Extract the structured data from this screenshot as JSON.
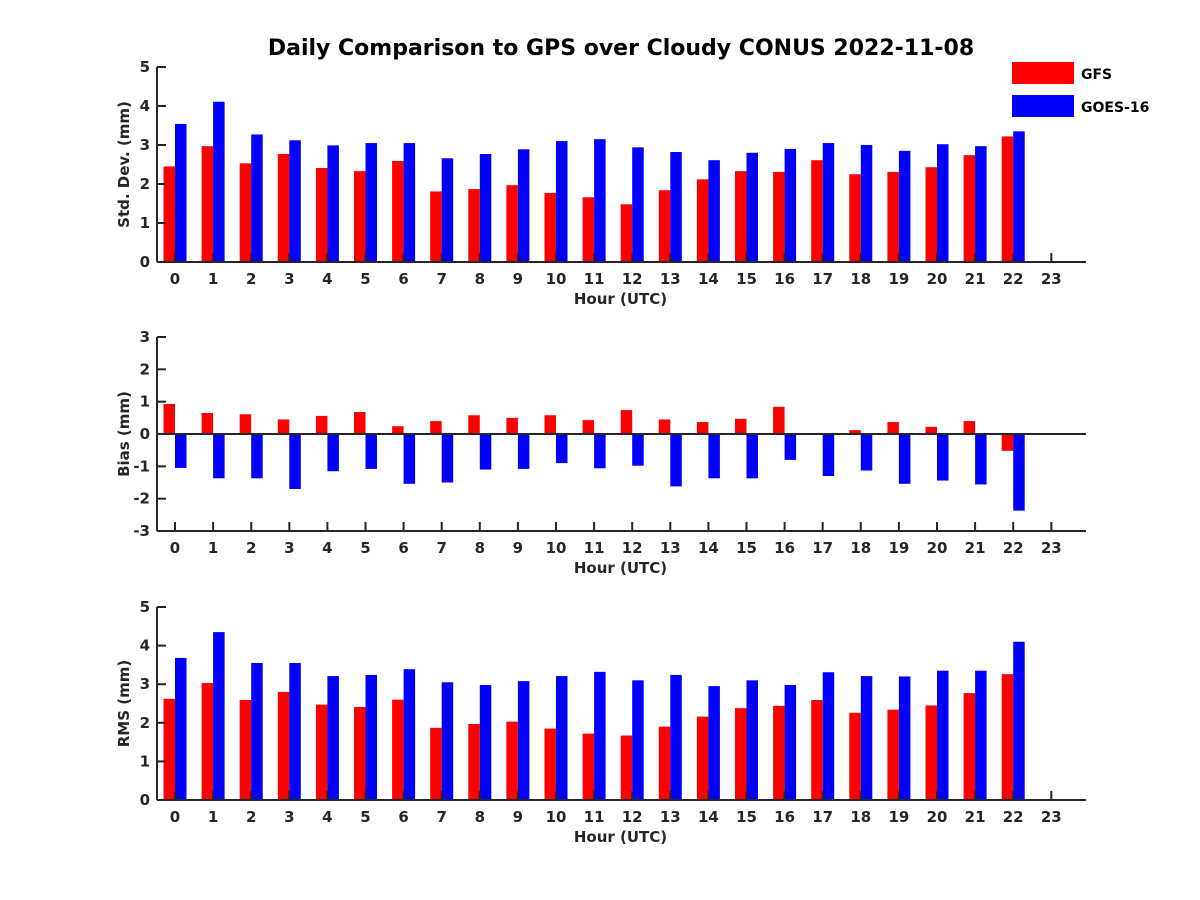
{
  "title": "Daily Comparison to GPS over Cloudy CONUS 2022-11-08",
  "legend": {
    "placement": "top-right",
    "entries": [
      {
        "label": "GFS",
        "color": "#ff0000"
      },
      {
        "label": "GOES-16",
        "color": "#0000ff"
      }
    ]
  },
  "chart_data": [
    {
      "type": "bar",
      "xlabel": "Hour (UTC)",
      "ylabel": "Std. Dev. (mm)",
      "ylim": [
        0,
        5
      ],
      "yticks": [
        0,
        1,
        2,
        3,
        4,
        5
      ],
      "categories": [
        "0",
        "1",
        "2",
        "3",
        "4",
        "5",
        "6",
        "7",
        "8",
        "9",
        "10",
        "11",
        "12",
        "13",
        "14",
        "15",
        "16",
        "17",
        "18",
        "19",
        "20",
        "21",
        "22",
        "23"
      ],
      "series": [
        {
          "name": "GFS",
          "color": "#ff0000",
          "values": [
            2.45,
            2.97,
            2.53,
            2.77,
            2.41,
            2.33,
            2.59,
            1.81,
            1.87,
            1.97,
            1.77,
            1.66,
            1.48,
            1.84,
            2.12,
            2.33,
            2.31,
            2.61,
            2.25,
            2.31,
            2.43,
            2.74,
            3.22,
            null
          ]
        },
        {
          "name": "GOES-16",
          "color": "#0000ff",
          "values": [
            3.54,
            4.11,
            3.27,
            3.12,
            2.99,
            3.05,
            3.05,
            2.66,
            2.77,
            2.89,
            3.1,
            3.15,
            2.94,
            2.82,
            2.61,
            2.8,
            2.9,
            3.05,
            3.0,
            2.85,
            3.02,
            2.97,
            3.35,
            null
          ]
        }
      ]
    },
    {
      "type": "bar",
      "xlabel": "Hour (UTC)",
      "ylabel": "Bias (mm)",
      "ylim": [
        -3,
        3
      ],
      "yticks": [
        -3,
        -2,
        -1,
        0,
        1,
        2,
        3
      ],
      "categories": [
        "0",
        "1",
        "2",
        "3",
        "4",
        "5",
        "6",
        "7",
        "8",
        "9",
        "10",
        "11",
        "12",
        "13",
        "14",
        "15",
        "16",
        "17",
        "18",
        "19",
        "20",
        "21",
        "22",
        "23"
      ],
      "series": [
        {
          "name": "GFS",
          "color": "#ff0000",
          "values": [
            0.93,
            0.65,
            0.61,
            0.45,
            0.56,
            0.68,
            0.24,
            0.4,
            0.58,
            0.5,
            0.58,
            0.43,
            0.74,
            0.45,
            0.37,
            0.47,
            0.84,
            0.0,
            0.12,
            0.37,
            0.22,
            0.4,
            -0.52,
            null
          ]
        },
        {
          "name": "GOES-16",
          "color": "#0000ff",
          "values": [
            -1.05,
            -1.37,
            -1.37,
            -1.7,
            -1.15,
            -1.08,
            -1.54,
            -1.5,
            -1.1,
            -1.08,
            -0.9,
            -1.06,
            -0.98,
            -1.62,
            -1.37,
            -1.37,
            -0.8,
            -1.3,
            -1.13,
            -1.54,
            -1.44,
            -1.56,
            -2.37,
            null
          ]
        }
      ]
    },
    {
      "type": "bar",
      "xlabel": "Hour (UTC)",
      "ylabel": "RMS (mm)",
      "ylim": [
        0,
        5
      ],
      "yticks": [
        0,
        1,
        2,
        3,
        4,
        5
      ],
      "categories": [
        "0",
        "1",
        "2",
        "3",
        "4",
        "5",
        "6",
        "7",
        "8",
        "9",
        "10",
        "11",
        "12",
        "13",
        "14",
        "15",
        "16",
        "17",
        "18",
        "19",
        "20",
        "21",
        "22",
        "23"
      ],
      "series": [
        {
          "name": "GFS",
          "color": "#ff0000",
          "values": [
            2.62,
            3.03,
            2.59,
            2.8,
            2.47,
            2.41,
            2.6,
            1.87,
            1.97,
            2.03,
            1.85,
            1.72,
            1.67,
            1.9,
            2.16,
            2.38,
            2.44,
            2.59,
            2.26,
            2.34,
            2.45,
            2.77,
            3.26,
            null
          ]
        },
        {
          "name": "GOES-16",
          "color": "#0000ff",
          "values": [
            3.68,
            4.35,
            3.55,
            3.55,
            3.21,
            3.24,
            3.39,
            3.05,
            2.98,
            3.08,
            3.21,
            3.32,
            3.1,
            3.24,
            2.95,
            3.1,
            2.98,
            3.31,
            3.21,
            3.2,
            3.35,
            3.35,
            4.1,
            null
          ]
        }
      ]
    }
  ]
}
